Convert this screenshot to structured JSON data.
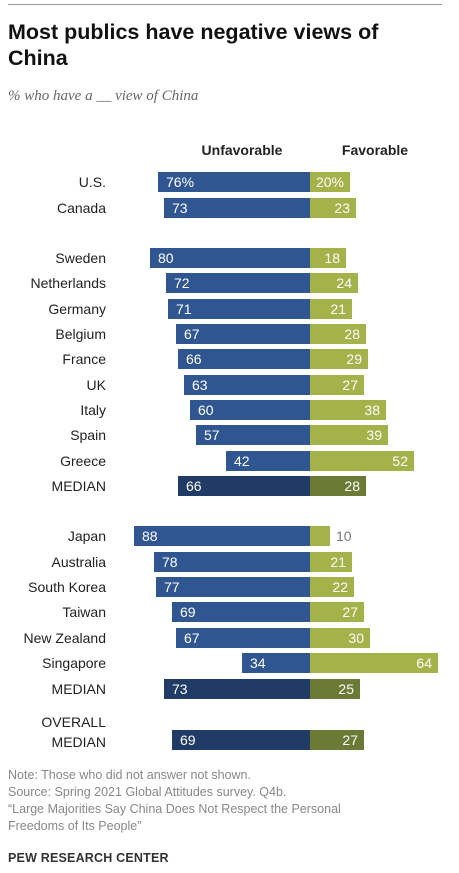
{
  "title": "Most publics have negative views of China",
  "subtitle": "% who have a __ view of China",
  "chart_data": {
    "type": "bar",
    "orientation": "diverging-horizontal",
    "headers": {
      "left": "Unfavorable",
      "right": "Favorable"
    },
    "rows": [
      {
        "label": [
          "U.S."
        ],
        "unfav": 76,
        "fav": 20,
        "unfav_label": "76%",
        "fav_label": "20%",
        "median": false
      },
      {
        "label": [
          "Canada"
        ],
        "unfav": 73,
        "fav": 23,
        "unfav_label": "73",
        "fav_label": "23",
        "median": false
      },
      {
        "label": [
          "Sweden"
        ],
        "unfav": 80,
        "fav": 18,
        "unfav_label": "80",
        "fav_label": "18",
        "median": false
      },
      {
        "label": [
          "Netherlands"
        ],
        "unfav": 72,
        "fav": 24,
        "unfav_label": "72",
        "fav_label": "24",
        "median": false
      },
      {
        "label": [
          "Germany"
        ],
        "unfav": 71,
        "fav": 21,
        "unfav_label": "71",
        "fav_label": "21",
        "median": false
      },
      {
        "label": [
          "Belgium"
        ],
        "unfav": 67,
        "fav": 28,
        "unfav_label": "67",
        "fav_label": "28",
        "median": false
      },
      {
        "label": [
          "France"
        ],
        "unfav": 66,
        "fav": 29,
        "unfav_label": "66",
        "fav_label": "29",
        "median": false
      },
      {
        "label": [
          "UK"
        ],
        "unfav": 63,
        "fav": 27,
        "unfav_label": "63",
        "fav_label": "27",
        "median": false
      },
      {
        "label": [
          "Italy"
        ],
        "unfav": 60,
        "fav": 38,
        "unfav_label": "60",
        "fav_label": "38",
        "median": false
      },
      {
        "label": [
          "Spain"
        ],
        "unfav": 57,
        "fav": 39,
        "unfav_label": "57",
        "fav_label": "39",
        "median": false
      },
      {
        "label": [
          "Greece"
        ],
        "unfav": 42,
        "fav": 52,
        "unfav_label": "42",
        "fav_label": "52",
        "median": false
      },
      {
        "label": [
          "MEDIAN"
        ],
        "unfav": 66,
        "fav": 28,
        "unfav_label": "66",
        "fav_label": "28",
        "median": true
      },
      {
        "label": [
          "Japan"
        ],
        "unfav": 88,
        "fav": 10,
        "unfav_label": "88",
        "fav_label": "10",
        "median": false
      },
      {
        "label": [
          "Australia"
        ],
        "unfav": 78,
        "fav": 21,
        "unfav_label": "78",
        "fav_label": "21",
        "median": false
      },
      {
        "label": [
          "South Korea"
        ],
        "unfav": 77,
        "fav": 22,
        "unfav_label": "77",
        "fav_label": "22",
        "median": false
      },
      {
        "label": [
          "Taiwan"
        ],
        "unfav": 69,
        "fav": 27,
        "unfav_label": "69",
        "fav_label": "27",
        "median": false
      },
      {
        "label": [
          "New Zealand"
        ],
        "unfav": 67,
        "fav": 30,
        "unfav_label": "67",
        "fav_label": "30",
        "median": false
      },
      {
        "label": [
          "Singapore"
        ],
        "unfav": 34,
        "fav": 64,
        "unfav_label": "34",
        "fav_label": "64",
        "median": false
      },
      {
        "label": [
          "MEDIAN"
        ],
        "unfav": 73,
        "fav": 25,
        "unfav_label": "73",
        "fav_label": "25",
        "median": true
      },
      {
        "label": [
          "OVERALL",
          "MEDIAN"
        ],
        "unfav": 69,
        "fav": 27,
        "unfav_label": "69",
        "fav_label": "27",
        "median": true
      }
    ],
    "colors": {
      "unfavorable": "#2f5690",
      "favorable": "#a4b24a",
      "unfavorable_median": "#1f3b66",
      "favorable_median": "#6b7a35"
    }
  },
  "notes": [
    "Note: Those who did not answer not shown.",
    "Source: Spring 2021 Global Attitudes survey. Q4b.",
    "“Large Majorities Say China Does Not Respect the Personal",
    "Freedoms of Its People”"
  ],
  "credit": "PEW RESEARCH CENTER"
}
